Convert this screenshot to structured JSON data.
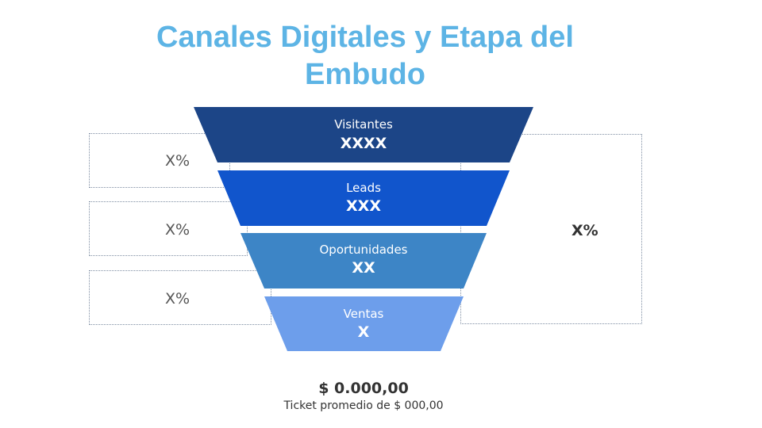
{
  "title": "Canales Digitales y Etapa del Embudo",
  "stages": [
    {
      "name": "Visitantes",
      "value": "XXXX",
      "color": "#1c4587"
    },
    {
      "name": "Leads",
      "value": "XXX",
      "color": "#1155cc"
    },
    {
      "name": "Oportunidades",
      "value": "XX",
      "color": "#3d85c6"
    },
    {
      "name": "Ventas",
      "value": "X",
      "color": "#6d9eeb"
    }
  ],
  "conversion_rates": [
    "X%",
    "X%",
    "X%"
  ],
  "total_conversion": "X%",
  "ticket": {
    "value": "$ 0.000,00",
    "label": "Ticket promedio de $ 000,00"
  }
}
